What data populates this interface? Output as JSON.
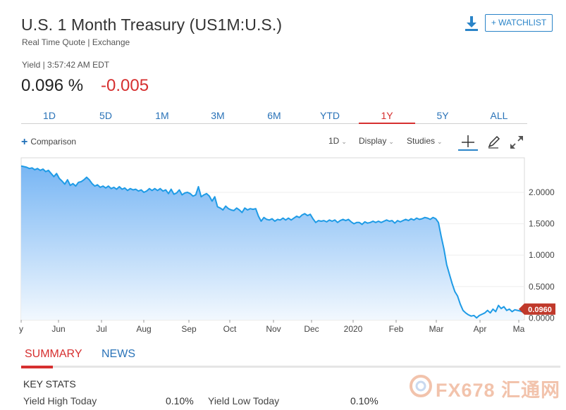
{
  "header": {
    "title": "U.S. 1 Month Treasury (US1M:U.S.)",
    "subtitle": "Real Time Quote | Exchange",
    "watchlist_label": "+ WATCHLIST"
  },
  "quote": {
    "meta": "Yield | 3:57:42 AM EDT",
    "price": "0.096 %",
    "change": "-0.005"
  },
  "ranges": [
    {
      "label": "1D",
      "active": false
    },
    {
      "label": "5D",
      "active": false
    },
    {
      "label": "1M",
      "active": false
    },
    {
      "label": "3M",
      "active": false
    },
    {
      "label": "6M",
      "active": false
    },
    {
      "label": "YTD",
      "active": false
    },
    {
      "label": "1Y",
      "active": true
    },
    {
      "label": "5Y",
      "active": false
    },
    {
      "label": "ALL",
      "active": false
    }
  ],
  "toolbar": {
    "comparison_label": "Comparison",
    "interval_label": "1D",
    "display_label": "Display",
    "studies_label": "Studies"
  },
  "colors": {
    "line": "#1e9be6",
    "fill_top": "#78b6f4",
    "fill_bottom": "#f2f8fe",
    "change_negative": "#d62f2f",
    "price_tag": "#c0392b",
    "link": "#2a73b8"
  },
  "chart_data": {
    "type": "area",
    "x_labels": [
      "y",
      "Jun",
      "Jul",
      "Aug",
      "Sep",
      "Oct",
      "Nov",
      "Dec",
      "2020",
      "Feb",
      "Mar",
      "Apr",
      "Ma"
    ],
    "y_ticks": [
      "2.0000",
      "1.5000",
      "1.0000",
      "0.5000",
      "0.0000"
    ],
    "ylim": [
      -0.03,
      2.55
    ],
    "last_value_label": "0.0960",
    "last_value": 0.096,
    "series": [
      {
        "values": [
          2.42,
          2.41,
          2.4,
          2.38,
          2.39,
          2.36,
          2.38,
          2.35,
          2.37,
          2.33,
          2.35,
          2.3,
          2.25,
          2.3,
          2.22,
          2.18,
          2.13,
          2.2,
          2.11,
          2.14,
          2.1,
          2.16,
          2.17,
          2.2,
          2.24,
          2.2,
          2.14,
          2.1,
          2.12,
          2.08,
          2.1,
          2.07,
          2.1,
          2.06,
          2.08,
          2.05,
          2.09,
          2.05,
          2.07,
          2.03,
          2.06,
          2.04,
          2.05,
          2.02,
          2.04,
          2.0,
          2.02,
          2.06,
          2.03,
          2.06,
          2.03,
          2.06,
          2.02,
          2.04,
          1.98,
          2.05,
          1.97,
          1.99,
          2.04,
          1.96,
          1.99,
          2.0,
          1.98,
          1.94,
          1.96,
          2.09,
          1.93,
          1.96,
          1.98,
          1.94,
          1.86,
          1.93,
          1.77,
          1.75,
          1.72,
          1.78,
          1.74,
          1.72,
          1.71,
          1.75,
          1.72,
          1.68,
          1.75,
          1.72,
          1.74,
          1.73,
          1.74,
          1.62,
          1.54,
          1.6,
          1.57,
          1.56,
          1.58,
          1.54,
          1.57,
          1.56,
          1.59,
          1.56,
          1.59,
          1.56,
          1.59,
          1.62,
          1.6,
          1.64,
          1.66,
          1.63,
          1.65,
          1.58,
          1.52,
          1.55,
          1.54,
          1.55,
          1.53,
          1.56,
          1.54,
          1.56,
          1.52,
          1.55,
          1.57,
          1.55,
          1.57,
          1.53,
          1.5,
          1.52,
          1.52,
          1.49,
          1.53,
          1.51,
          1.52,
          1.54,
          1.52,
          1.54,
          1.52,
          1.54,
          1.56,
          1.54,
          1.55,
          1.51,
          1.55,
          1.53,
          1.55,
          1.57,
          1.55,
          1.58,
          1.56,
          1.59,
          1.57,
          1.58,
          1.6,
          1.59,
          1.57,
          1.6,
          1.58,
          1.52,
          1.3,
          1.1,
          0.85,
          0.7,
          0.55,
          0.42,
          0.35,
          0.22,
          0.12,
          0.08,
          0.05,
          0.03,
          0.04,
          0.0,
          0.04,
          0.06,
          0.08,
          0.12,
          0.08,
          0.14,
          0.1,
          0.2,
          0.15,
          0.18,
          0.12,
          0.14,
          0.1,
          0.13,
          0.12,
          0.11,
          0.096
        ]
      }
    ]
  },
  "summary": {
    "tabs": [
      {
        "label": "SUMMARY",
        "active": true
      },
      {
        "label": "NEWS",
        "active": false
      }
    ],
    "key_stats_title": "KEY STATS",
    "stats": [
      {
        "label": "Yield High Today",
        "value": "0.10%"
      },
      {
        "label": "Yield Low Today",
        "value": "0.10%"
      }
    ]
  },
  "watermark": {
    "text": "FX678 汇通网"
  }
}
